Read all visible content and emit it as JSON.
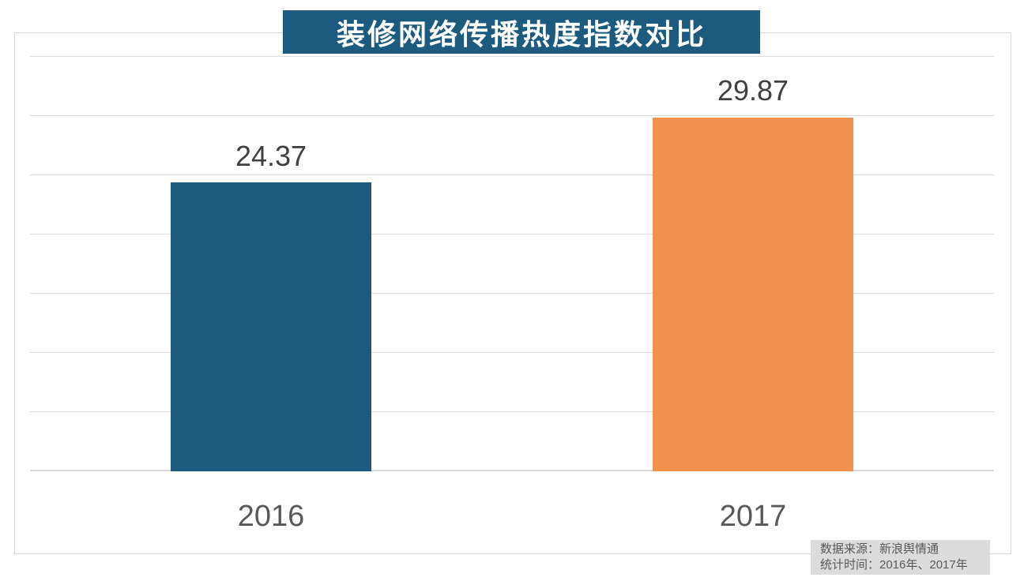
{
  "title": "装修网络传播热度指数对比",
  "chart_data": {
    "type": "bar",
    "title": "装修网络传播热度指数对比",
    "categories": [
      "2016",
      "2017"
    ],
    "values": [
      24.37,
      29.87
    ],
    "value_labels": [
      "24.37",
      "29.87"
    ],
    "xlabel": "",
    "ylabel": "",
    "ylim": [
      0,
      35
    ],
    "gridline_step": 5,
    "grid": true,
    "legend": false,
    "bar_colors": [
      "#1d5b7e",
      "#f0924d"
    ]
  },
  "colors": {
    "title_bg": "#1d5b7e",
    "title_text": "#ffffff",
    "gridline": "#dcdcdc",
    "frame_border": "#d9d9d9",
    "value_label_text": "#404040",
    "axis_label_text": "#595959",
    "source_bg": "#dcdcdc",
    "source_text": "#595959"
  },
  "source_note": {
    "line1": "数据来源：新浪舆情通",
    "line2": "统计时间：2016年、2017年"
  }
}
